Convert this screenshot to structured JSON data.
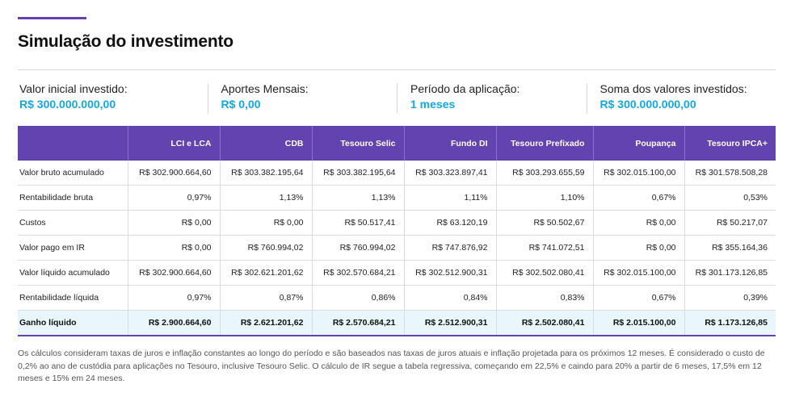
{
  "page": {
    "title": "Simulação do investimento"
  },
  "summary": [
    {
      "label": "Valor inicial investido:",
      "value": "R$ 300.000.000,00"
    },
    {
      "label": "Aportes Mensais:",
      "value": "R$ 0,00"
    },
    {
      "label": "Período da aplicação:",
      "value": "1 meses"
    },
    {
      "label": "Soma dos valores investidos:",
      "value": "R$ 300.000.000,00"
    }
  ],
  "table": {
    "headers": [
      "",
      "LCI e LCA",
      "CDB",
      "Tesouro Selic",
      "Fundo DI",
      "Tesouro Prefixado",
      "Poupança",
      "Tesouro IPCA+"
    ],
    "rows": [
      {
        "label": "Valor bruto acumulado",
        "cells": [
          "R$ 302.900.664,60",
          "R$ 303.382.195,64",
          "R$ 303.382.195,64",
          "R$ 303.323.897,41",
          "R$ 303.293.655,59",
          "R$ 302.015.100,00",
          "R$ 301.578.508,28"
        ]
      },
      {
        "label": "Rentabilidade bruta",
        "cells": [
          "0,97%",
          "1,13%",
          "1,13%",
          "1,11%",
          "1,10%",
          "0,67%",
          "0,53%"
        ]
      },
      {
        "label": "Custos",
        "cells": [
          "R$ 0,00",
          "R$ 0,00",
          "R$ 50.517,41",
          "R$ 63.120,19",
          "R$ 50.502,67",
          "R$ 0,00",
          "R$ 50.217,07"
        ]
      },
      {
        "label": "Valor pago em IR",
        "cells": [
          "R$ 0,00",
          "R$ 760.994,02",
          "R$ 760.994,02",
          "R$ 747.876,92",
          "R$ 741.072,51",
          "R$ 0,00",
          "R$ 355.164,36"
        ]
      },
      {
        "label": "Valor líquido acumulado",
        "cells": [
          "R$ 302.900.664,60",
          "R$ 302.621.201,62",
          "R$ 302.570.684,21",
          "R$ 302.512.900,31",
          "R$ 302.502.080,41",
          "R$ 302.015.100,00",
          "R$ 301.173.126,85"
        ]
      },
      {
        "label": "Rentabilidade líquida",
        "cells": [
          "0,97%",
          "0,87%",
          "0,86%",
          "0,84%",
          "0,83%",
          "0,67%",
          "0,39%"
        ]
      }
    ],
    "total": {
      "label": "Ganho líquido",
      "cells": [
        "R$ 2.900.664,60",
        "R$ 2.621.201,62",
        "R$ 2.570.684,21",
        "R$ 2.512.900,31",
        "R$ 2.502.080,41",
        "R$ 2.015.100,00",
        "R$ 1.173.126,85"
      ]
    }
  },
  "footnote": "Os cálculos consideram taxas de juros e inflação constantes ao longo do período e são baseados nas taxas de juros atuais e inflação projetada para os próximos 12 meses. É considerado o custo de 0,2% ao ano de custódia para aplicações no Tesouro, inclusive Tesouro Selic. O cálculo de IR segue a tabela regressiva, começando em 22,5% e caindo para 20% a partir de 6 meses, 17,5% em 12 meses e 15% em 24 meses.",
  "colors": {
    "accent": "#6243b0",
    "value_blue": "#13a8e0",
    "highlight_row": "#e9f6fc"
  }
}
